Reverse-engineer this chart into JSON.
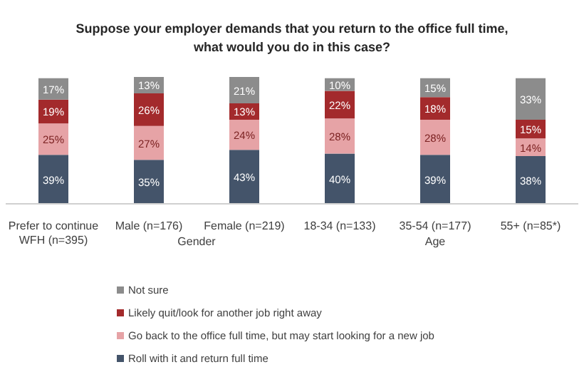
{
  "chart_data": {
    "type": "bar",
    "stacked": true,
    "title": "Suppose your employer demands that you return to the office full time,\nwhat would you do in this case?",
    "categories": [
      "Prefer to continue WFH (n=395)",
      "Male (n=176)",
      "Female (n=219)",
      "18-34 (n=133)",
      "35-54 (n=177)",
      "55+ (n=85*)"
    ],
    "series": [
      {
        "name": "Roll with it and return full time",
        "color": "#44546a",
        "values": [
          39,
          35,
          43,
          40,
          39,
          38
        ],
        "value_labels": [
          "39%",
          "35%",
          "43%",
          "40%",
          "39%",
          "38%"
        ]
      },
      {
        "name": "Go back to the office full time, but may start looking for a new job",
        "color": "#e6a3a6",
        "values": [
          25,
          27,
          24,
          28,
          28,
          14
        ],
        "value_labels": [
          "25%",
          "27%",
          "24%",
          "28%",
          "28%",
          "14%"
        ]
      },
      {
        "name": "Likely quit/look for another job right away",
        "color": "#a32a2c",
        "values": [
          19,
          26,
          13,
          22,
          18,
          15
        ],
        "value_labels": [
          "19%",
          "26%",
          "13%",
          "22%",
          "18%",
          "15%"
        ]
      },
      {
        "name": "Not sure",
        "color": "#8c8c8c",
        "values": [
          17,
          13,
          21,
          10,
          15,
          33
        ],
        "value_labels": [
          "17%",
          "13%",
          "21%",
          "10%",
          "15%",
          "33%"
        ]
      }
    ],
    "annotations": [
      "Gender",
      "Age"
    ],
    "legend": "bottom"
  }
}
